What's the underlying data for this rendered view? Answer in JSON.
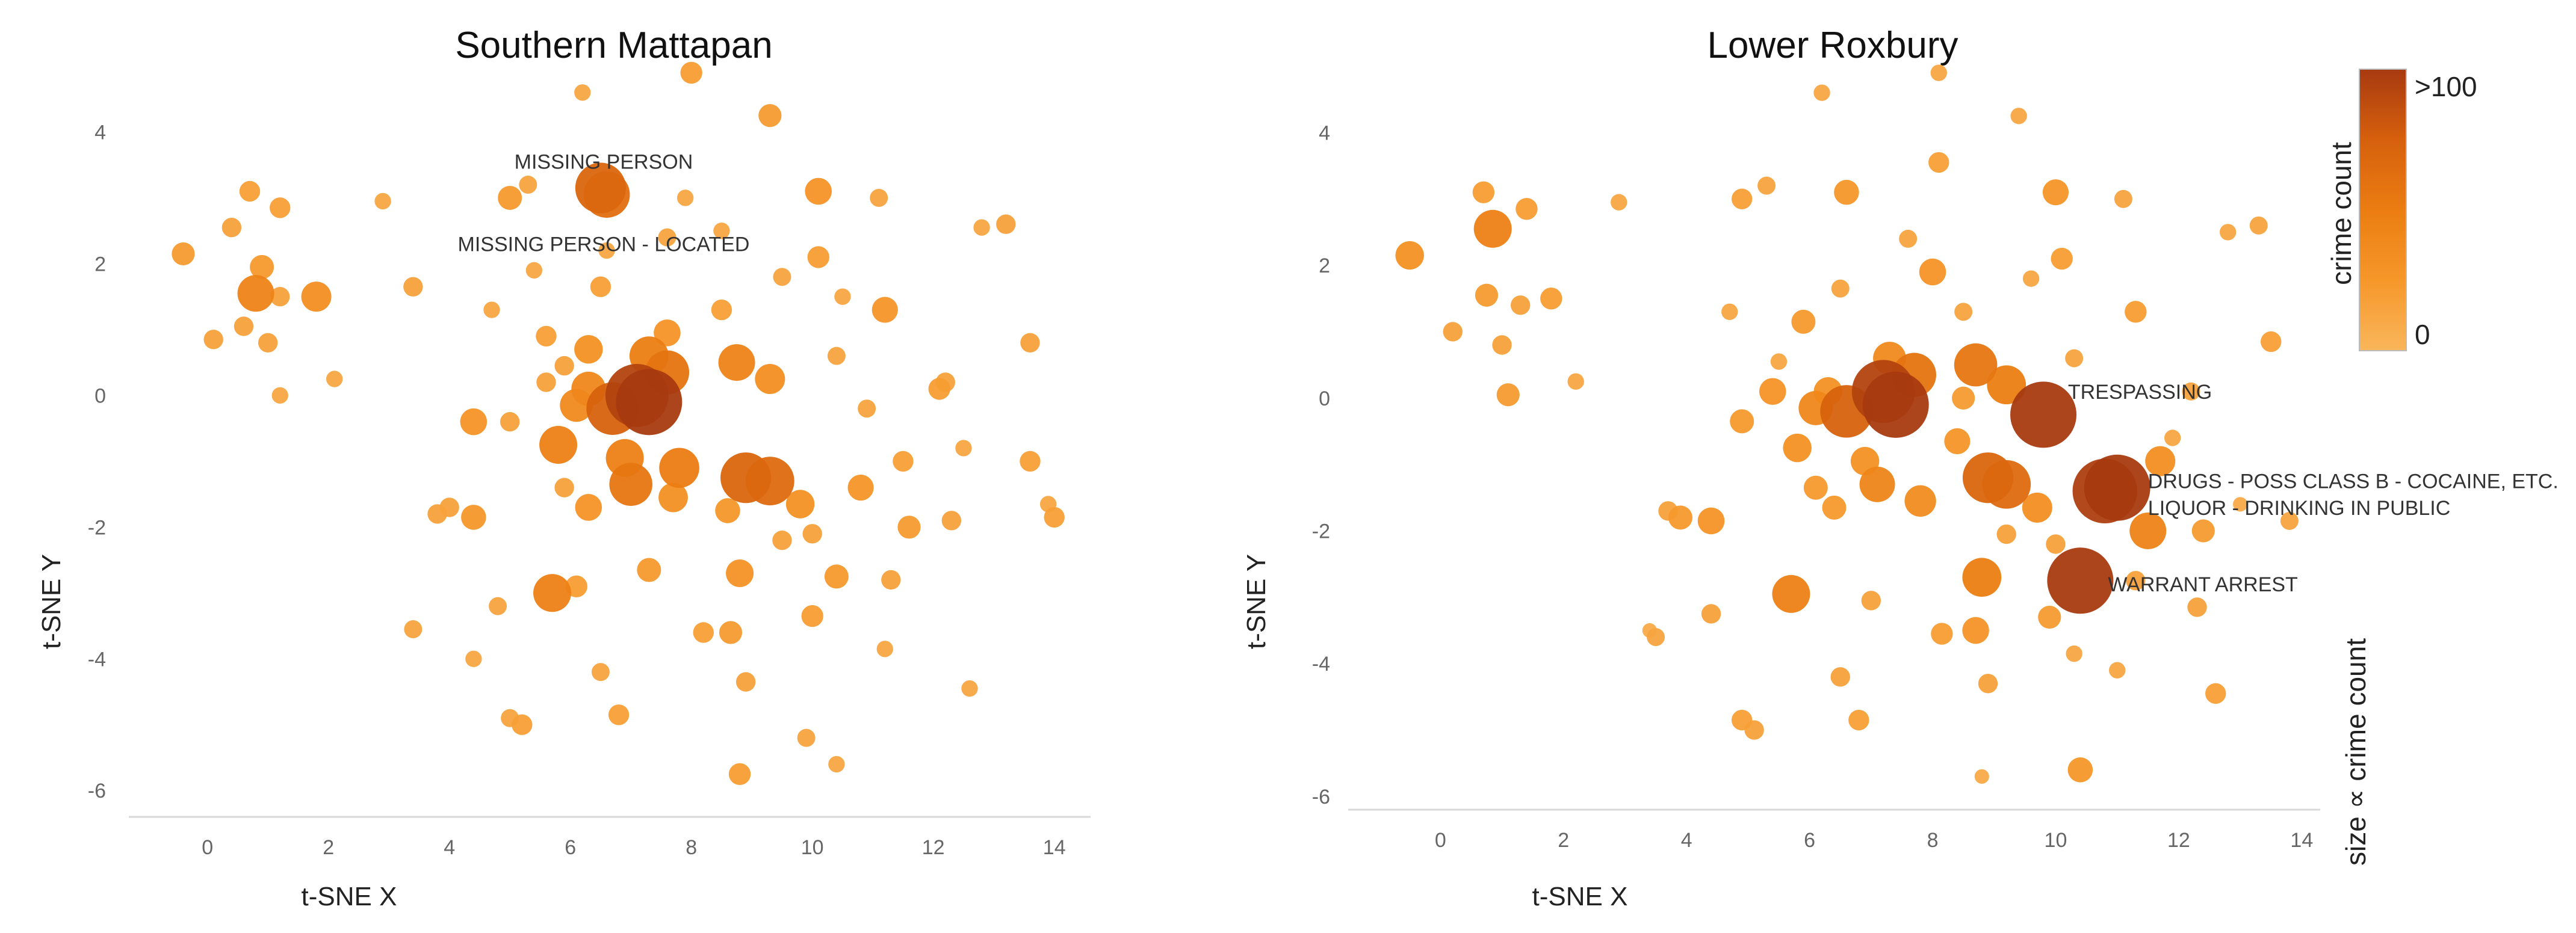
{
  "colors": {
    "low": "#f9b65b",
    "high": "#a83a10",
    "axis_line": "#d9d9d9"
  },
  "chart_data": [
    {
      "type": "scatter",
      "title": "Southern Mattapan",
      "xlabel": "t-SNE X",
      "ylabel": "t-SNE Y",
      "xlim": [
        -1.3,
        14.6
      ],
      "ylim": [
        -6.4,
        5.0
      ],
      "xticks": [
        "0",
        "2",
        "4",
        "6",
        "8",
        "10",
        "12",
        "14"
      ],
      "yticks": [
        "4",
        "2",
        "0",
        "-2",
        "-4",
        "-6"
      ],
      "grid": false,
      "points": [
        {
          "x": 7.3,
          "y": -0.1,
          "count": 100
        },
        {
          "x": 7.1,
          "y": 0.0,
          "count": 90
        },
        {
          "x": 6.7,
          "y": -0.2,
          "count": 60
        },
        {
          "x": 6.5,
          "y": 3.15,
          "count": 55
        },
        {
          "x": 6.6,
          "y": 3.05,
          "count": 45
        },
        {
          "x": 8.9,
          "y": -1.25,
          "count": 55
        },
        {
          "x": 9.3,
          "y": -1.3,
          "count": 50
        },
        {
          "x": 7.6,
          "y": 0.35,
          "count": 40
        },
        {
          "x": 7.0,
          "y": -1.35,
          "count": 38
        },
        {
          "x": 7.8,
          "y": -1.1,
          "count": 32
        },
        {
          "x": 7.3,
          "y": 0.6,
          "count": 30
        },
        {
          "x": 6.9,
          "y": -0.95,
          "count": 28
        },
        {
          "x": 5.8,
          "y": -0.75,
          "count": 28
        },
        {
          "x": 5.7,
          "y": -3.0,
          "count": 28
        },
        {
          "x": 0.8,
          "y": 1.55,
          "count": 26
        },
        {
          "x": 8.75,
          "y": 0.5,
          "count": 26
        },
        {
          "x": 6.3,
          "y": 0.1,
          "count": 22
        },
        {
          "x": 6.1,
          "y": -0.15,
          "count": 20
        },
        {
          "x": 1.8,
          "y": 1.5,
          "count": 16
        },
        {
          "x": 9.3,
          "y": 0.25,
          "count": 16
        },
        {
          "x": 7.7,
          "y": -1.55,
          "count": 15
        },
        {
          "x": 6.3,
          "y": 0.7,
          "count": 14
        },
        {
          "x": 9.8,
          "y": -1.65,
          "count": 14
        },
        {
          "x": 8.8,
          "y": -2.7,
          "count": 13
        },
        {
          "x": 4.4,
          "y": -0.4,
          "count": 12
        },
        {
          "x": 7.6,
          "y": 0.95,
          "count": 12
        },
        {
          "x": 6.3,
          "y": -1.7,
          "count": 12
        },
        {
          "x": 10.1,
          "y": 3.1,
          "count": 12
        },
        {
          "x": 11.2,
          "y": 1.3,
          "count": 11
        },
        {
          "x": 10.8,
          "y": -1.4,
          "count": 11
        },
        {
          "x": 4.4,
          "y": -1.85,
          "count": 10
        },
        {
          "x": 8.6,
          "y": -1.75,
          "count": 10
        },
        {
          "x": 0.9,
          "y": 1.95,
          "count": 9
        },
        {
          "x": 5.0,
          "y": 3.0,
          "count": 9
        },
        {
          "x": 7.3,
          "y": -2.65,
          "count": 9
        },
        {
          "x": 10.4,
          "y": -2.75,
          "count": 9
        },
        {
          "x": 8.65,
          "y": -3.6,
          "count": 8
        },
        {
          "x": 11.6,
          "y": -2.0,
          "count": 8
        },
        {
          "x": 9.3,
          "y": 4.25,
          "count": 8
        },
        {
          "x": -0.4,
          "y": 2.15,
          "count": 8
        },
        {
          "x": 6.1,
          "y": -2.9,
          "count": 7
        },
        {
          "x": 10.1,
          "y": 2.1,
          "count": 7
        },
        {
          "x": 8.0,
          "y": 4.9,
          "count": 7
        },
        {
          "x": 10.0,
          "y": -3.35,
          "count": 7
        },
        {
          "x": 12.1,
          "y": 0.1,
          "count": 7
        },
        {
          "x": 8.8,
          "y": -5.75,
          "count": 7
        },
        {
          "x": 6.8,
          "y": -4.85,
          "count": 6
        },
        {
          "x": 5.2,
          "y": -5.0,
          "count": 6
        },
        {
          "x": 8.2,
          "y": -3.6,
          "count": 6
        },
        {
          "x": 11.5,
          "y": -1.0,
          "count": 6
        },
        {
          "x": 13.6,
          "y": -1.0,
          "count": 6
        },
        {
          "x": 14.0,
          "y": -1.85,
          "count": 6
        },
        {
          "x": 0.7,
          "y": 3.1,
          "count": 6
        },
        {
          "x": 1.2,
          "y": 2.85,
          "count": 6
        },
        {
          "x": 6.5,
          "y": 1.65,
          "count": 6
        },
        {
          "x": 5.6,
          "y": 0.9,
          "count": 6
        },
        {
          "x": 8.5,
          "y": 1.3,
          "count": 6
        },
        {
          "x": 3.4,
          "y": 1.65,
          "count": 5
        },
        {
          "x": 0.4,
          "y": 2.55,
          "count": 5
        },
        {
          "x": 0.1,
          "y": 0.85,
          "count": 5
        },
        {
          "x": 0.6,
          "y": 1.05,
          "count": 5
        },
        {
          "x": 1.0,
          "y": 0.8,
          "count": 5
        },
        {
          "x": 1.2,
          "y": 1.5,
          "count": 5
        },
        {
          "x": 5.9,
          "y": 0.45,
          "count": 5
        },
        {
          "x": 4.0,
          "y": -1.7,
          "count": 5
        },
        {
          "x": 3.8,
          "y": -1.8,
          "count": 5
        },
        {
          "x": 5.9,
          "y": -1.4,
          "count": 5
        },
        {
          "x": 5.0,
          "y": -0.4,
          "count": 5
        },
        {
          "x": 5.6,
          "y": 0.2,
          "count": 5
        },
        {
          "x": 8.9,
          "y": -4.35,
          "count": 5
        },
        {
          "x": 9.5,
          "y": -2.2,
          "count": 5
        },
        {
          "x": 10.0,
          "y": -2.1,
          "count": 5
        },
        {
          "x": 11.3,
          "y": -2.8,
          "count": 5
        },
        {
          "x": 12.2,
          "y": 0.2,
          "count": 5
        },
        {
          "x": 12.3,
          "y": -1.9,
          "count": 5
        },
        {
          "x": 13.2,
          "y": 2.6,
          "count": 5
        },
        {
          "x": 13.6,
          "y": 0.8,
          "count": 5
        },
        {
          "x": 11.1,
          "y": 3.0,
          "count": 4
        },
        {
          "x": 5.3,
          "y": 3.2,
          "count": 4
        },
        {
          "x": 7.6,
          "y": 2.4,
          "count": 4
        },
        {
          "x": 9.5,
          "y": 1.8,
          "count": 4
        },
        {
          "x": 10.4,
          "y": 0.6,
          "count": 4
        },
        {
          "x": 10.9,
          "y": -0.2,
          "count": 4
        },
        {
          "x": 4.8,
          "y": -3.2,
          "count": 4
        },
        {
          "x": 3.4,
          "y": -3.55,
          "count": 4
        },
        {
          "x": 5.0,
          "y": -4.9,
          "count": 4
        },
        {
          "x": 6.5,
          "y": -4.2,
          "count": 4
        },
        {
          "x": 9.9,
          "y": -5.2,
          "count": 4
        },
        {
          "x": 12.6,
          "y": -4.45,
          "count": 3
        },
        {
          "x": 10.4,
          "y": -5.6,
          "count": 3
        },
        {
          "x": 11.2,
          "y": -3.85,
          "count": 3
        },
        {
          "x": 6.2,
          "y": 4.6,
          "count": 3
        },
        {
          "x": 2.9,
          "y": 2.95,
          "count": 3
        },
        {
          "x": 12.8,
          "y": 2.55,
          "count": 3
        },
        {
          "x": 13.9,
          "y": -1.65,
          "count": 3
        },
        {
          "x": 12.5,
          "y": -0.8,
          "count": 3
        },
        {
          "x": 4.4,
          "y": -4.0,
          "count": 3
        },
        {
          "x": 7.9,
          "y": 3.0,
          "count": 3
        },
        {
          "x": 8.5,
          "y": 2.5,
          "count": 3
        },
        {
          "x": 10.5,
          "y": 1.5,
          "count": 3
        },
        {
          "x": 1.2,
          "y": 0.0,
          "count": 3
        },
        {
          "x": 2.1,
          "y": 0.25,
          "count": 3
        },
        {
          "x": 4.7,
          "y": 1.3,
          "count": 3
        },
        {
          "x": 5.4,
          "y": 1.9,
          "count": 3
        },
        {
          "x": 6.6,
          "y": 2.2,
          "count": 3
        }
      ],
      "annotations": [
        {
          "text": "MISSING PERSON",
          "x": 6.55,
          "y": 3.55
        },
        {
          "text": "MISSING PERSON - LOCATED",
          "x": 6.55,
          "y": 2.3
        }
      ]
    },
    {
      "type": "scatter",
      "title": "Lower Roxbury",
      "xlabel": "t-SNE X",
      "ylabel": "t-SNE Y",
      "xlim": [
        -1.5,
        14.3
      ],
      "ylim": [
        -6.2,
        5.0
      ],
      "xticks": [
        "0",
        "2",
        "4",
        "6",
        "8",
        "10",
        "12",
        "14"
      ],
      "yticks": [
        "4",
        "2",
        "0",
        "-2",
        "-4",
        "-6"
      ],
      "grid": false,
      "points": [
        {
          "x": 7.4,
          "y": -0.1,
          "count": 100
        },
        {
          "x": 7.2,
          "y": 0.1,
          "count": 90
        },
        {
          "x": 6.6,
          "y": -0.2,
          "count": 60
        },
        {
          "x": 9.8,
          "y": -0.25,
          "count": 100
        },
        {
          "x": 11.0,
          "y": -1.35,
          "count": 100
        },
        {
          "x": 10.8,
          "y": -1.4,
          "count": 95
        },
        {
          "x": 10.4,
          "y": -2.75,
          "count": 100
        },
        {
          "x": 8.9,
          "y": -1.2,
          "count": 55
        },
        {
          "x": 9.2,
          "y": -1.3,
          "count": 50
        },
        {
          "x": 7.7,
          "y": 0.35,
          "count": 40
        },
        {
          "x": 8.7,
          "y": 0.5,
          "count": 38
        },
        {
          "x": 9.2,
          "y": 0.2,
          "count": 30
        },
        {
          "x": 8.8,
          "y": -2.7,
          "count": 30
        },
        {
          "x": 0.85,
          "y": 2.55,
          "count": 28
        },
        {
          "x": 5.7,
          "y": -2.95,
          "count": 28
        },
        {
          "x": 11.5,
          "y": -2.0,
          "count": 26
        },
        {
          "x": 7.1,
          "y": -1.3,
          "count": 24
        },
        {
          "x": 6.1,
          "y": -0.15,
          "count": 22
        },
        {
          "x": 7.3,
          "y": 0.6,
          "count": 20
        },
        {
          "x": 7.8,
          "y": -1.55,
          "count": 18
        },
        {
          "x": 9.7,
          "y": -1.65,
          "count": 16
        },
        {
          "x": 11.7,
          "y": -0.95,
          "count": 16
        },
        {
          "x": 6.3,
          "y": 0.1,
          "count": 14
        },
        {
          "x": 6.9,
          "y": -0.95,
          "count": 14
        },
        {
          "x": 5.8,
          "y": -0.75,
          "count": 14
        },
        {
          "x": -0.5,
          "y": 2.15,
          "count": 14
        },
        {
          "x": 5.4,
          "y": 0.1,
          "count": 12
        },
        {
          "x": 8.7,
          "y": -3.5,
          "count": 12
        },
        {
          "x": 8.0,
          "y": 1.9,
          "count": 12
        },
        {
          "x": 4.4,
          "y": -1.85,
          "count": 12
        },
        {
          "x": 10.0,
          "y": 3.1,
          "count": 11
        },
        {
          "x": 8.4,
          "y": -0.65,
          "count": 11
        },
        {
          "x": 10.4,
          "y": -5.6,
          "count": 10
        },
        {
          "x": 6.6,
          "y": 3.1,
          "count": 10
        },
        {
          "x": 3.9,
          "y": -1.8,
          "count": 9
        },
        {
          "x": 4.9,
          "y": -0.35,
          "count": 9
        },
        {
          "x": 6.1,
          "y": -1.35,
          "count": 9
        },
        {
          "x": 6.4,
          "y": -1.65,
          "count": 9
        },
        {
          "x": 5.9,
          "y": 1.15,
          "count": 9
        },
        {
          "x": 9.9,
          "y": -3.3,
          "count": 8
        },
        {
          "x": 12.4,
          "y": -2.0,
          "count": 8
        },
        {
          "x": 8.5,
          "y": 0.0,
          "count": 8
        },
        {
          "x": 1.1,
          "y": 0.05,
          "count": 8
        },
        {
          "x": 0.75,
          "y": 1.55,
          "count": 8
        },
        {
          "x": 1.4,
          "y": 2.85,
          "count": 7
        },
        {
          "x": 0.7,
          "y": 3.1,
          "count": 7
        },
        {
          "x": 1.8,
          "y": 1.5,
          "count": 7
        },
        {
          "x": 8.15,
          "y": -3.55,
          "count": 7
        },
        {
          "x": 10.1,
          "y": 2.1,
          "count": 7
        },
        {
          "x": 11.3,
          "y": 1.3,
          "count": 7
        },
        {
          "x": 8.1,
          "y": 3.55,
          "count": 6
        },
        {
          "x": 4.9,
          "y": -4.85,
          "count": 6
        },
        {
          "x": 6.8,
          "y": -4.85,
          "count": 6
        },
        {
          "x": 12.6,
          "y": -4.45,
          "count": 6
        },
        {
          "x": 13.5,
          "y": 0.85,
          "count": 6
        },
        {
          "x": 4.9,
          "y": 3.0,
          "count": 6
        },
        {
          "x": 1.0,
          "y": 0.8,
          "count": 5
        },
        {
          "x": 0.2,
          "y": 1.0,
          "count": 5
        },
        {
          "x": 1.3,
          "y": 1.4,
          "count": 5
        },
        {
          "x": 3.7,
          "y": -1.7,
          "count": 5
        },
        {
          "x": 4.4,
          "y": -3.25,
          "count": 5
        },
        {
          "x": 6.5,
          "y": -4.2,
          "count": 5
        },
        {
          "x": 9.2,
          "y": -2.05,
          "count": 5
        },
        {
          "x": 8.9,
          "y": -4.3,
          "count": 5
        },
        {
          "x": 10.0,
          "y": -2.2,
          "count": 5
        },
        {
          "x": 11.3,
          "y": -2.75,
          "count": 5
        },
        {
          "x": 12.3,
          "y": -3.15,
          "count": 5
        },
        {
          "x": 7.0,
          "y": -3.05,
          "count": 5
        },
        {
          "x": 5.1,
          "y": -5.0,
          "count": 5
        },
        {
          "x": 3.5,
          "y": -3.6,
          "count": 4
        },
        {
          "x": 11.1,
          "y": 3.0,
          "count": 4
        },
        {
          "x": 5.3,
          "y": 3.2,
          "count": 4
        },
        {
          "x": 6.5,
          "y": 1.65,
          "count": 4
        },
        {
          "x": 7.6,
          "y": 2.4,
          "count": 4
        },
        {
          "x": 8.5,
          "y": 1.3,
          "count": 4
        },
        {
          "x": 10.3,
          "y": 0.6,
          "count": 4
        },
        {
          "x": 12.2,
          "y": 0.1,
          "count": 4
        },
        {
          "x": 13.3,
          "y": 2.6,
          "count": 4
        },
        {
          "x": 13.8,
          "y": -1.85,
          "count": 4
        },
        {
          "x": 11.0,
          "y": -4.1,
          "count": 3
        },
        {
          "x": 10.3,
          "y": -3.85,
          "count": 3
        },
        {
          "x": 9.4,
          "y": 4.25,
          "count": 3
        },
        {
          "x": 8.1,
          "y": 4.9,
          "count": 3
        },
        {
          "x": 6.2,
          "y": 4.6,
          "count": 3
        },
        {
          "x": 2.9,
          "y": 2.95,
          "count": 3
        },
        {
          "x": 12.8,
          "y": 2.5,
          "count": 3
        },
        {
          "x": 5.5,
          "y": 0.55,
          "count": 3
        },
        {
          "x": 2.2,
          "y": 0.25,
          "count": 3
        },
        {
          "x": 4.7,
          "y": 1.3,
          "count": 3
        },
        {
          "x": 9.6,
          "y": 1.8,
          "count": 3
        },
        {
          "x": 11.9,
          "y": -0.6,
          "count": 3
        },
        {
          "x": 8.8,
          "y": -5.7,
          "count": 2
        },
        {
          "x": 13.0,
          "y": -1.6,
          "count": 2
        },
        {
          "x": 3.4,
          "y": -3.5,
          "count": 2
        }
      ],
      "annotations": [
        {
          "text": "TRESPASSING",
          "x": 10.2,
          "y": 0.1
        },
        {
          "text": "DRUGS - POSS CLASS B - COCAINE, ETC.",
          "x": 11.5,
          "y": -1.25
        },
        {
          "text": "LIQUOR - DRINKING IN PUBLIC",
          "x": 11.5,
          "y": -1.65
        },
        {
          "text": "WARRANT ARREST",
          "x": 10.85,
          "y": -2.8
        }
      ]
    }
  ],
  "colorbar": {
    "label": "crime count",
    "max_label": ">100",
    "min_label": "0",
    "colors": [
      "#f9b65b",
      "#f6972a",
      "#eb7d12",
      "#d6600d",
      "#a83a10"
    ]
  },
  "size_legend": {
    "label": "size ∝ crime count"
  }
}
